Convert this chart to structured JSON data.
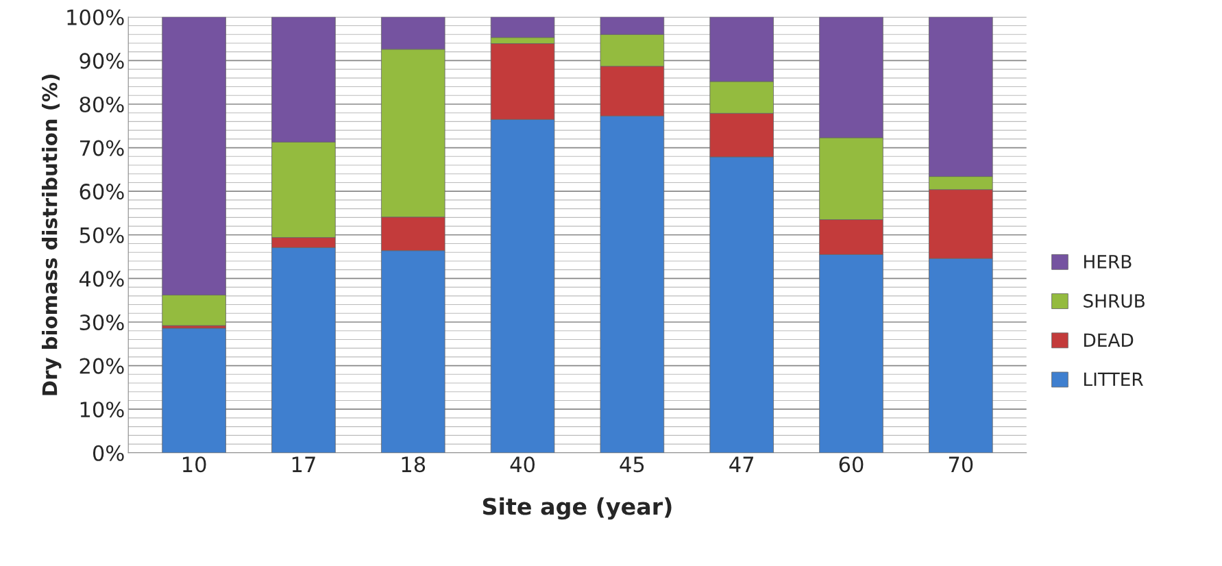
{
  "chart_data": {
    "type": "bar",
    "stacked": true,
    "xlabel": "Site age (year)",
    "ylabel": "Dry biomass distribution (%)",
    "categories": [
      "10",
      "17",
      "18",
      "40",
      "45",
      "47",
      "60",
      "70"
    ],
    "series": [
      {
        "name": "LITTER",
        "color": "#3f7fcf",
        "values": [
          28.6,
          47.1,
          46.4,
          76.5,
          77.3,
          67.9,
          45.5,
          44.6
        ]
      },
      {
        "name": "DEAD",
        "color": "#c33b3b",
        "values": [
          0.6,
          2.3,
          7.7,
          17.4,
          11.4,
          10.0,
          8.0,
          15.8
        ]
      },
      {
        "name": "SHRUB",
        "color": "#94bb3f",
        "values": [
          7.0,
          21.9,
          38.5,
          1.4,
          7.3,
          7.3,
          18.8,
          3.0
        ]
      },
      {
        "name": "HERB",
        "color": "#7553a0",
        "values": [
          63.8,
          28.7,
          7.4,
          4.7,
          4.0,
          14.8,
          27.7,
          36.6
        ]
      }
    ],
    "ylim": [
      0,
      100
    ],
    "yticks": [
      {
        "value": 0,
        "label": "0%"
      },
      {
        "value": 10,
        "label": "10%"
      },
      {
        "value": 20,
        "label": "20%"
      },
      {
        "value": 30,
        "label": "30%"
      },
      {
        "value": 40,
        "label": "40%"
      },
      {
        "value": 50,
        "label": "50%"
      },
      {
        "value": 60,
        "label": "60%"
      },
      {
        "value": 70,
        "label": "70%"
      },
      {
        "value": 80,
        "label": "80%"
      },
      {
        "value": 90,
        "label": "90%"
      },
      {
        "value": 100,
        "label": "100%"
      }
    ],
    "grid": "y",
    "legend": "right"
  }
}
